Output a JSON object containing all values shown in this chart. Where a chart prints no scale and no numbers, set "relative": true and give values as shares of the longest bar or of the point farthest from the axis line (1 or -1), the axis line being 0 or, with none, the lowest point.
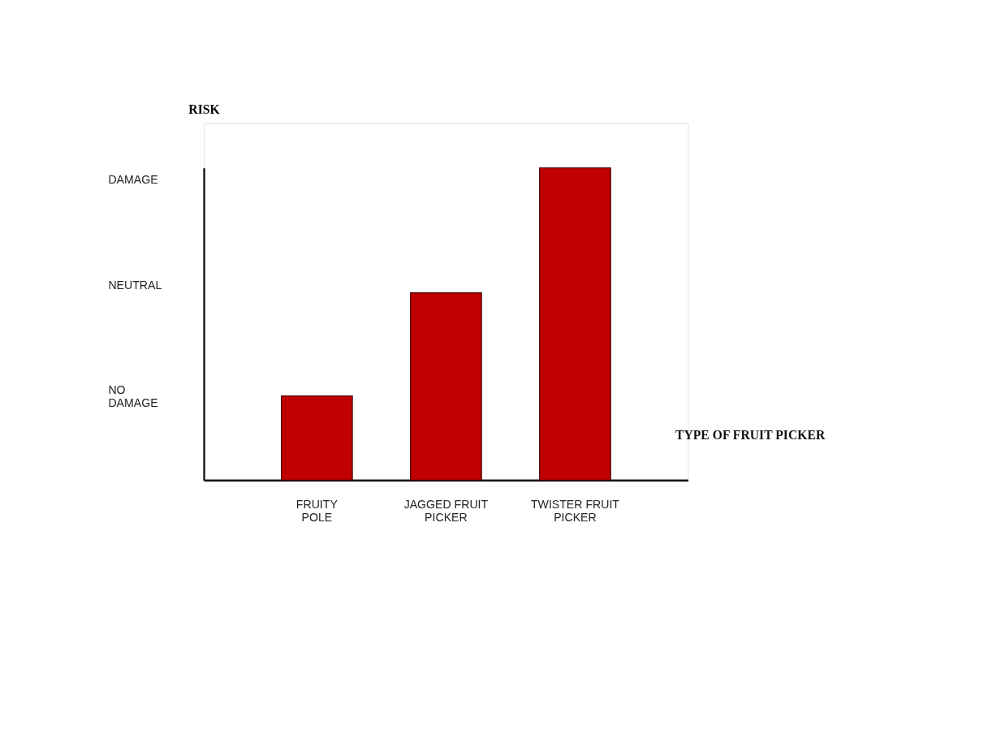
{
  "chart_data": {
    "type": "bar",
    "xlabel": "TYPE OF FRUIT PICKER",
    "ylabel": "RISK",
    "categories": [
      "FRUITY POLE",
      "JAGGED FRUIT PICKER",
      "TWISTER FRUIT PICKER"
    ],
    "values": [
      0.27,
      0.6,
      1
    ],
    "color": "#c00000",
    "relative": true,
    "annotations": [
      "NO DAMAGE",
      "NEUTRAL",
      "DAMAGE"
    ]
  }
}
